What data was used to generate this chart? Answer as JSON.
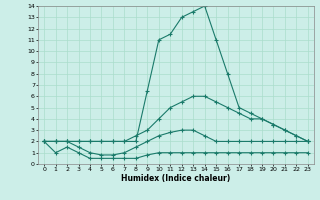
{
  "xlabel": "Humidex (Indice chaleur)",
  "background_color": "#cceee8",
  "grid_color": "#aaddcc",
  "line_color": "#1a7a6a",
  "x_data": [
    0,
    1,
    2,
    3,
    4,
    5,
    6,
    7,
    8,
    9,
    10,
    11,
    12,
    13,
    14,
    15,
    16,
    17,
    18,
    19,
    20,
    21,
    22,
    23
  ],
  "line1": [
    2,
    1,
    1.5,
    1,
    0.5,
    0.5,
    0.5,
    0.5,
    0.5,
    0.8,
    1,
    1,
    1,
    1,
    1,
    1,
    1,
    1,
    1,
    1,
    1,
    1,
    1,
    1
  ],
  "line2": [
    2,
    2,
    2,
    1.5,
    1,
    0.8,
    0.8,
    1,
    1.5,
    2,
    2.5,
    2.8,
    3,
    3,
    2.5,
    2,
    2,
    2,
    2,
    2,
    2,
    2,
    2,
    2
  ],
  "line3": [
    2,
    2,
    2,
    2,
    2,
    2,
    2,
    2,
    2.5,
    3,
    4,
    5,
    5.5,
    6,
    6,
    5.5,
    5,
    4.5,
    4,
    4,
    3.5,
    3,
    2.5,
    2
  ],
  "line4": [
    2,
    2,
    2,
    2,
    2,
    2,
    2,
    2,
    2,
    6.5,
    11,
    11.5,
    13,
    13.5,
    14,
    11,
    8,
    5,
    4.5,
    4,
    3.5,
    3,
    2.5,
    2
  ],
  "xlim": [
    -0.5,
    23.5
  ],
  "ylim": [
    0,
    14
  ],
  "yticks": [
    0,
    1,
    2,
    3,
    4,
    5,
    6,
    7,
    8,
    9,
    10,
    11,
    12,
    13,
    14
  ],
  "xticks": [
    0,
    1,
    2,
    3,
    4,
    5,
    6,
    7,
    8,
    9,
    10,
    11,
    12,
    13,
    14,
    15,
    16,
    17,
    18,
    19,
    20,
    21,
    22,
    23
  ]
}
